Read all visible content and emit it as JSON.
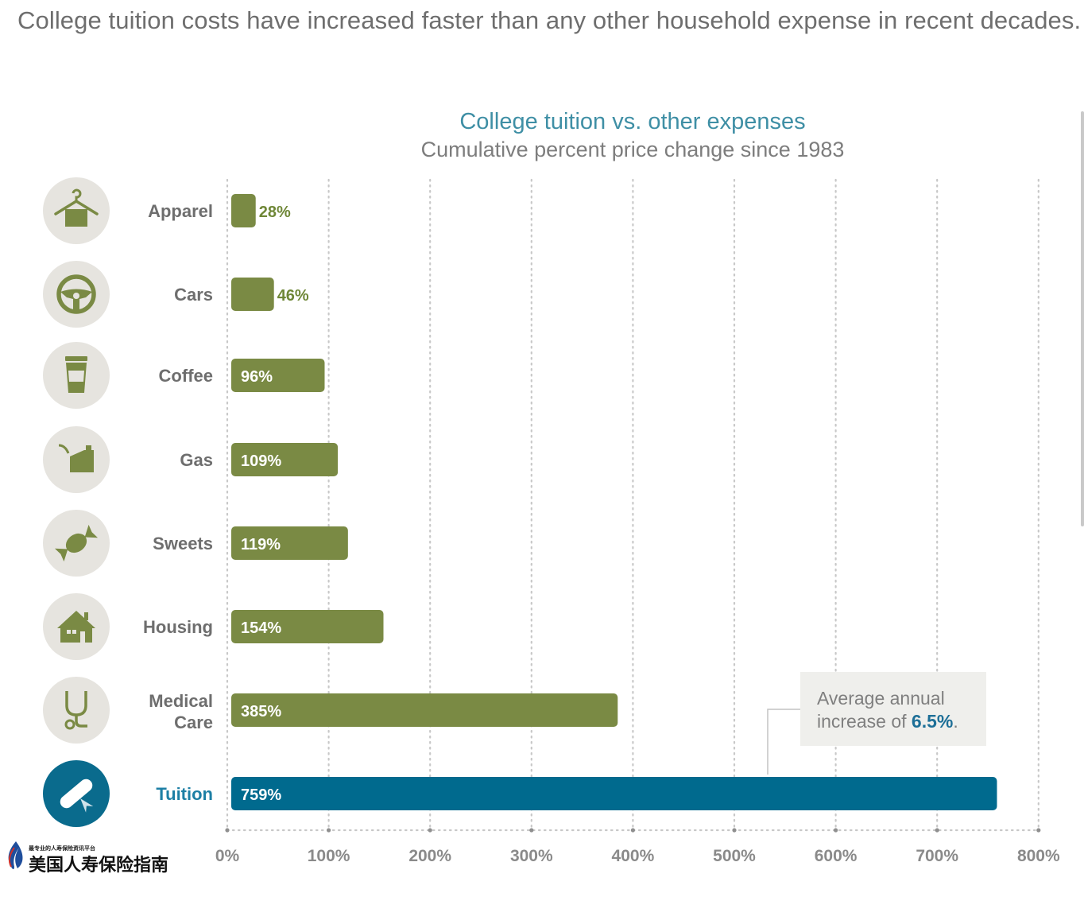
{
  "headline": "College tuition costs have increased faster than any other household expense in recent decades.",
  "chart_data": {
    "type": "bar",
    "orientation": "horizontal",
    "title": "College tuition vs. other expenses",
    "subtitle": "Cumulative percent price change since 1983",
    "categories": [
      "Apparel",
      "Cars",
      "Coffee",
      "Gas",
      "Sweets",
      "Housing",
      "Medical Care",
      "Tuition"
    ],
    "category_lines": [
      [
        "Apparel"
      ],
      [
        "Cars"
      ],
      [
        "Coffee"
      ],
      [
        "Gas"
      ],
      [
        "Sweets"
      ],
      [
        "Housing"
      ],
      [
        "Medical",
        "Care"
      ],
      [
        "Tuition"
      ]
    ],
    "values": [
      28,
      46,
      96,
      109,
      119,
      154,
      385,
      759
    ],
    "data_labels": [
      "28%",
      "46%",
      "96%",
      "109%",
      "119%",
      "154%",
      "385%",
      "759%"
    ],
    "icons": [
      "hanger-icon",
      "steering-wheel-icon",
      "coffee-cup-icon",
      "gas-can-icon",
      "candy-icon",
      "house-icon",
      "stethoscope-icon",
      "diploma-icon"
    ],
    "highlight_category": "Tuition",
    "xlim": [
      0,
      800
    ],
    "x_ticks": [
      0,
      100,
      200,
      300,
      400,
      500,
      600,
      700,
      800
    ],
    "x_tick_labels": [
      "0%",
      "100%",
      "200%",
      "300%",
      "400%",
      "500%",
      "600%",
      "700%",
      "800%"
    ],
    "grid": "vertical dotted",
    "annotation": {
      "text_line1": "Average annual",
      "text_line2_prefix": "increase of ",
      "value": "6.5%",
      "text_line2_suffix": "."
    },
    "colors": {
      "bar": "#7a8a44",
      "highlight_bar": "#006a8e",
      "outside_label": "#6f8737",
      "inside_label": "#ffffff",
      "category_label": "#6e6e6e",
      "highlight_label": "#1d7fa5",
      "icon_circle": "#e6e4df",
      "icon_fg": "#7a8a44",
      "highlight_icon_circle": "#0a6b8d",
      "grid": "#c8c8c8",
      "axis_label": "#8a8a8a",
      "title": "#3f8fa5",
      "annotation_box": "#efefec",
      "annotation_text": "#7f7f7f",
      "annotation_value": "#1d6f97"
    }
  },
  "watermark": {
    "small_text": "最专业的人寿保险资讯平台",
    "main_text": "美国人寿保险指南"
  }
}
